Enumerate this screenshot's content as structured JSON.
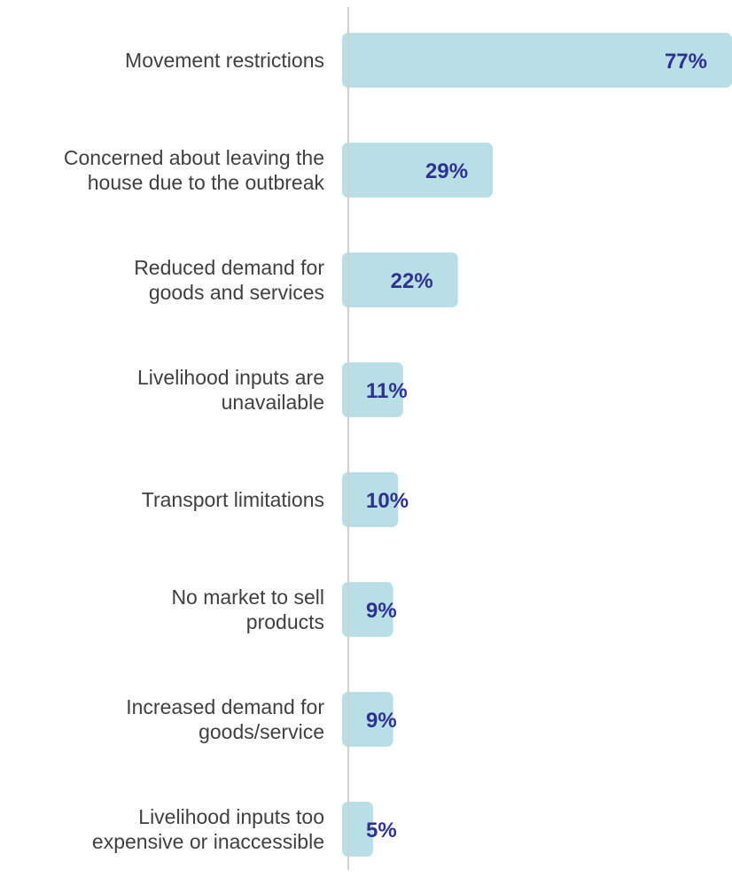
{
  "chart_data": {
    "type": "bar",
    "orientation": "horizontal",
    "categories": [
      [
        "Movement restrictions"
      ],
      [
        "Concerned about leaving the",
        "house due to the outbreak"
      ],
      [
        "Reduced demand for",
        "goods and services"
      ],
      [
        "Livelihood inputs are",
        "unavailable"
      ],
      [
        "Transport limitations"
      ],
      [
        "No market to sell",
        "products"
      ],
      [
        "Increased demand for",
        "goods/service"
      ],
      [
        "Livelihood inputs too",
        "expensive or inaccessible"
      ]
    ],
    "values": [
      77,
      29,
      22,
      11,
      10,
      9,
      9,
      5
    ],
    "value_labels": [
      "77%",
      "29%",
      "22%",
      "11%",
      "10%",
      "9%",
      "9%",
      "5%"
    ],
    "xlim": [
      0,
      77
    ],
    "grid": false,
    "colors": {
      "bar": "#b8dfe6",
      "value_label": "#2e3192",
      "category_label": "#404040",
      "axis_line": "#d0d0d0"
    }
  }
}
